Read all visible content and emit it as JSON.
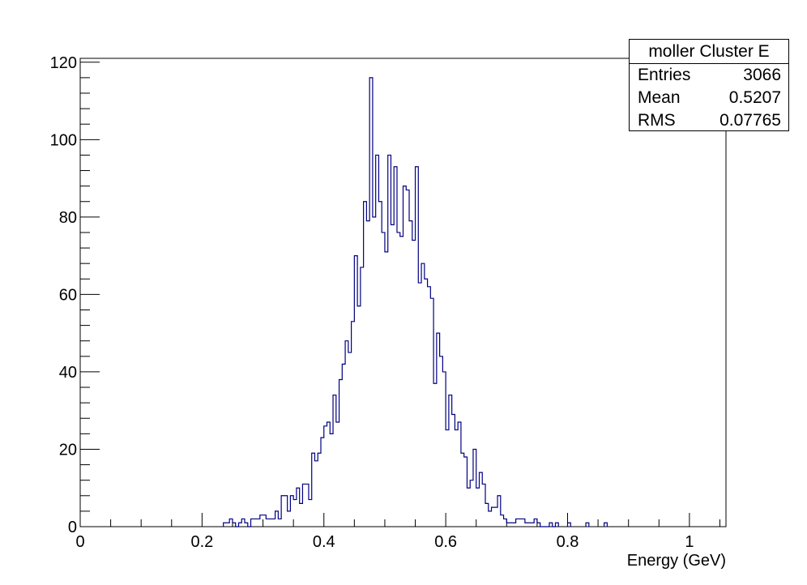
{
  "stats": {
    "title": "moller Cluster E",
    "rows": [
      {
        "label": "Entries",
        "value": "3066"
      },
      {
        "label": "Mean",
        "value": "0.5207"
      },
      {
        "label": "RMS",
        "value": "0.07765"
      }
    ]
  },
  "chart_data": {
    "type": "histogram",
    "xlabel": "Energy (GeV)",
    "ylabel": "",
    "xlim": [
      0,
      1.06
    ],
    "ylim": [
      0,
      121
    ],
    "bin_width": 0.005,
    "x_ticks": [
      "0",
      "0.2",
      "0.4",
      "0.6",
      "0.8",
      "1"
    ],
    "y_ticks": [
      "0",
      "20",
      "40",
      "60",
      "80",
      "100",
      "120"
    ],
    "grid": false,
    "line_color": "#000080",
    "bins": [
      {
        "x": 0.235,
        "y": 1
      },
      {
        "x": 0.24,
        "y": 1
      },
      {
        "x": 0.245,
        "y": 2
      },
      {
        "x": 0.25,
        "y": 1
      },
      {
        "x": 0.255,
        "y": 0
      },
      {
        "x": 0.26,
        "y": 1
      },
      {
        "x": 0.265,
        "y": 2
      },
      {
        "x": 0.27,
        "y": 1
      },
      {
        "x": 0.275,
        "y": 0
      },
      {
        "x": 0.28,
        "y": 2
      },
      {
        "x": 0.285,
        "y": 2
      },
      {
        "x": 0.29,
        "y": 2
      },
      {
        "x": 0.295,
        "y": 3
      },
      {
        "x": 0.3,
        "y": 3
      },
      {
        "x": 0.305,
        "y": 2
      },
      {
        "x": 0.31,
        "y": 2
      },
      {
        "x": 0.315,
        "y": 2
      },
      {
        "x": 0.32,
        "y": 4
      },
      {
        "x": 0.325,
        "y": 2
      },
      {
        "x": 0.33,
        "y": 8
      },
      {
        "x": 0.335,
        "y": 8
      },
      {
        "x": 0.34,
        "y": 4
      },
      {
        "x": 0.345,
        "y": 8
      },
      {
        "x": 0.35,
        "y": 7
      },
      {
        "x": 0.355,
        "y": 10
      },
      {
        "x": 0.36,
        "y": 6
      },
      {
        "x": 0.365,
        "y": 11
      },
      {
        "x": 0.37,
        "y": 11
      },
      {
        "x": 0.375,
        "y": 7
      },
      {
        "x": 0.38,
        "y": 19
      },
      {
        "x": 0.385,
        "y": 17
      },
      {
        "x": 0.39,
        "y": 19
      },
      {
        "x": 0.395,
        "y": 23
      },
      {
        "x": 0.4,
        "y": 26
      },
      {
        "x": 0.405,
        "y": 27
      },
      {
        "x": 0.41,
        "y": 24
      },
      {
        "x": 0.415,
        "y": 34
      },
      {
        "x": 0.42,
        "y": 27
      },
      {
        "x": 0.425,
        "y": 38
      },
      {
        "x": 0.43,
        "y": 42
      },
      {
        "x": 0.435,
        "y": 48
      },
      {
        "x": 0.44,
        "y": 45
      },
      {
        "x": 0.445,
        "y": 53
      },
      {
        "x": 0.45,
        "y": 70
      },
      {
        "x": 0.455,
        "y": 57
      },
      {
        "x": 0.46,
        "y": 67
      },
      {
        "x": 0.465,
        "y": 84
      },
      {
        "x": 0.47,
        "y": 79
      },
      {
        "x": 0.475,
        "y": 116
      },
      {
        "x": 0.48,
        "y": 80
      },
      {
        "x": 0.485,
        "y": 96
      },
      {
        "x": 0.49,
        "y": 84
      },
      {
        "x": 0.495,
        "y": 76
      },
      {
        "x": 0.5,
        "y": 71
      },
      {
        "x": 0.505,
        "y": 96
      },
      {
        "x": 0.51,
        "y": 78
      },
      {
        "x": 0.515,
        "y": 93
      },
      {
        "x": 0.52,
        "y": 76
      },
      {
        "x": 0.525,
        "y": 75
      },
      {
        "x": 0.53,
        "y": 88
      },
      {
        "x": 0.535,
        "y": 87
      },
      {
        "x": 0.54,
        "y": 79
      },
      {
        "x": 0.545,
        "y": 74
      },
      {
        "x": 0.55,
        "y": 93
      },
      {
        "x": 0.555,
        "y": 63
      },
      {
        "x": 0.56,
        "y": 68
      },
      {
        "x": 0.565,
        "y": 64
      },
      {
        "x": 0.57,
        "y": 62
      },
      {
        "x": 0.575,
        "y": 59
      },
      {
        "x": 0.58,
        "y": 37
      },
      {
        "x": 0.585,
        "y": 50
      },
      {
        "x": 0.59,
        "y": 44
      },
      {
        "x": 0.595,
        "y": 40
      },
      {
        "x": 0.6,
        "y": 25
      },
      {
        "x": 0.605,
        "y": 34
      },
      {
        "x": 0.61,
        "y": 29
      },
      {
        "x": 0.615,
        "y": 25
      },
      {
        "x": 0.62,
        "y": 27
      },
      {
        "x": 0.625,
        "y": 19
      },
      {
        "x": 0.63,
        "y": 18
      },
      {
        "x": 0.635,
        "y": 10
      },
      {
        "x": 0.64,
        "y": 12
      },
      {
        "x": 0.645,
        "y": 20
      },
      {
        "x": 0.65,
        "y": 10
      },
      {
        "x": 0.655,
        "y": 14
      },
      {
        "x": 0.66,
        "y": 11
      },
      {
        "x": 0.665,
        "y": 6
      },
      {
        "x": 0.67,
        "y": 4
      },
      {
        "x": 0.675,
        "y": 5
      },
      {
        "x": 0.68,
        "y": 5
      },
      {
        "x": 0.685,
        "y": 8
      },
      {
        "x": 0.69,
        "y": 3
      },
      {
        "x": 0.695,
        "y": 2
      },
      {
        "x": 0.7,
        "y": 1
      },
      {
        "x": 0.705,
        "y": 1
      },
      {
        "x": 0.71,
        "y": 1
      },
      {
        "x": 0.715,
        "y": 2
      },
      {
        "x": 0.72,
        "y": 2
      },
      {
        "x": 0.725,
        "y": 2
      },
      {
        "x": 0.73,
        "y": 1
      },
      {
        "x": 0.735,
        "y": 1
      },
      {
        "x": 0.74,
        "y": 1
      },
      {
        "x": 0.745,
        "y": 2
      },
      {
        "x": 0.75,
        "y": 1
      },
      {
        "x": 0.755,
        "y": 0
      },
      {
        "x": 0.76,
        "y": 0
      },
      {
        "x": 0.765,
        "y": 0
      },
      {
        "x": 0.77,
        "y": 1
      },
      {
        "x": 0.775,
        "y": 0
      },
      {
        "x": 0.78,
        "y": 1
      },
      {
        "x": 0.8,
        "y": 1
      },
      {
        "x": 0.83,
        "y": 1
      },
      {
        "x": 0.86,
        "y": 1
      }
    ]
  }
}
